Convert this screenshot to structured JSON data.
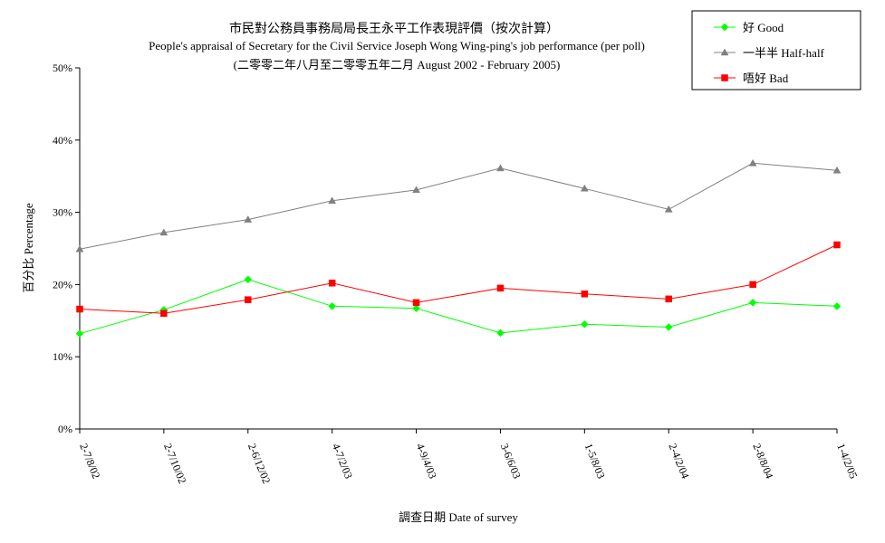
{
  "chart_data": {
    "type": "line",
    "title": "市民對公務員事務局局長王永平工作表現評價（按次計算）",
    "subtitle": "People's appraisal of Secretary for the Civil Service Joseph Wong Wing-ping's job performance (per poll)",
    "subtitle2": "(二零零二年八月至二零零五年二月 August 2002 - February 2005)",
    "xlabel": "調查日期 Date of survey",
    "ylabel": "百分比 Percentage",
    "ylim": [
      0,
      50
    ],
    "yticks": [
      0,
      10,
      20,
      30,
      40,
      50
    ],
    "ytick_labels": [
      "0%",
      "10%",
      "20%",
      "30%",
      "40%",
      "50%"
    ],
    "grid": false,
    "legend_position": "top-right",
    "categories": [
      "2-7/8/02",
      "2-7/10/02",
      "2-6/12/02",
      "4-7/2/03",
      "4-9/4/03",
      "3-6/6/03",
      "1-5/8/03",
      "2-4/2/04",
      "2-8/8/04",
      "1-4/2/05"
    ],
    "series": [
      {
        "name": "好 Good",
        "color": "#00ff00",
        "marker": "diamond",
        "values": [
          13.2,
          16.5,
          20.7,
          17.0,
          16.7,
          13.3,
          14.5,
          14.1,
          17.5,
          17.0
        ]
      },
      {
        "name": "一半半 Half-half",
        "color": "#808080",
        "marker": "triangle",
        "values": [
          24.9,
          27.2,
          29.0,
          31.6,
          33.1,
          36.1,
          33.3,
          30.4,
          36.8,
          35.8
        ]
      },
      {
        "name": "唔好 Bad",
        "color": "#ff0000",
        "marker": "square",
        "values": [
          16.6,
          16.0,
          17.9,
          20.2,
          17.5,
          19.5,
          18.7,
          18.0,
          20.0,
          25.5
        ]
      }
    ]
  }
}
